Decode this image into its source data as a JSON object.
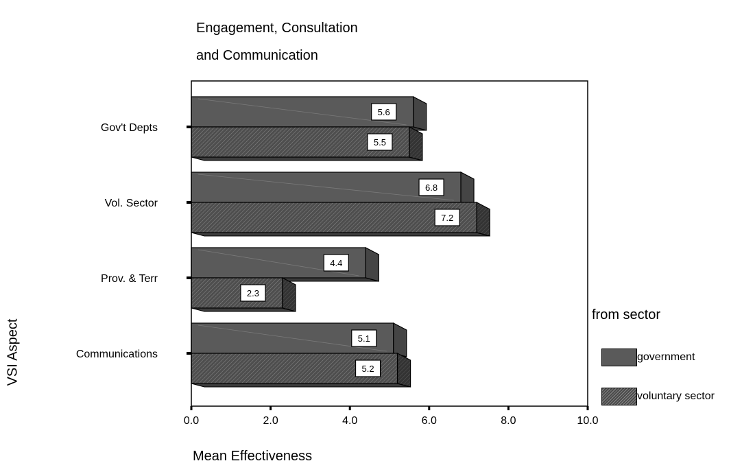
{
  "chart_data": {
    "type": "bar",
    "orientation": "horizontal",
    "title": "Engagement, Consultation and Communication",
    "title_lines": [
      "Engagement, Consultation",
      "and Communication"
    ],
    "xlabel": "Mean Effectiveness",
    "ylabel": "VSI Aspect",
    "categories": [
      "Gov't Depts",
      "Vol. Sector",
      "Prov. & Terr",
      "Communications"
    ],
    "series": [
      {
        "name": "government",
        "values": [
          5.6,
          6.8,
          4.4,
          5.1
        ],
        "labels": [
          "5.6",
          "6.8",
          "4.4",
          "5.1"
        ]
      },
      {
        "name": "voluntary sector",
        "values": [
          5.5,
          7.2,
          2.3,
          5.2
        ],
        "labels": [
          "5.5",
          "7.2",
          "2.3",
          "5.2"
        ]
      }
    ],
    "xlim": [
      0,
      10
    ],
    "xticks": [
      "0.0",
      "2.0",
      "4.0",
      "6.0",
      "8.0",
      "10.0"
    ],
    "grid": false,
    "legend_title": "from sector",
    "legend_position": "right",
    "colors": {
      "government": "#5a5a5a",
      "voluntary_sector": "#555555",
      "bar_top": "#6e6e6e",
      "bar_side": "#3a3a3a"
    }
  }
}
